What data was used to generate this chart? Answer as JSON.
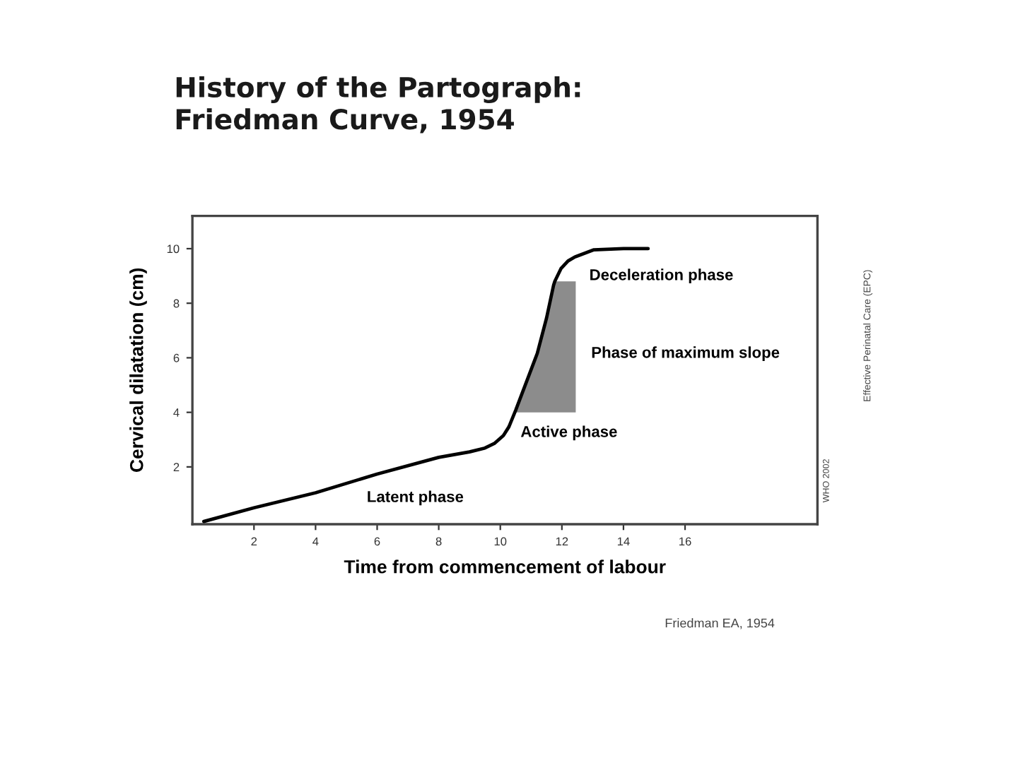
{
  "chart_data": {
    "type": "line",
    "title": "History of the Partograph:\nFriedman Curve, 1954",
    "xlabel": "Time from commencement of labour",
    "ylabel": "Cervical dilatation (cm)",
    "xlim": [
      0,
      20.3
    ],
    "ylim": [
      -0.1,
      11.2
    ],
    "xticks": [
      2,
      4,
      6,
      8,
      10,
      12,
      14,
      16
    ],
    "yticks": [
      2,
      4,
      6,
      8,
      10
    ],
    "series": [
      {
        "color": "#000000",
        "x": [
          0.37,
          2,
          4,
          6,
          8,
          9.0,
          9.5,
          9.82,
          10.1,
          10.28,
          10.5,
          11.2,
          11.5,
          11.73,
          11.77,
          11.97,
          12.2,
          12.43,
          12.45,
          13.04,
          14.0,
          14.8
        ],
        "values": [
          0.0,
          0.5,
          1.05,
          1.74,
          2.35,
          2.55,
          2.69,
          2.87,
          3.15,
          3.47,
          4.08,
          6.16,
          7.45,
          8.66,
          8.8,
          9.27,
          9.55,
          9.7,
          9.71,
          9.96,
          10.0,
          10.0
        ],
        "lower": [
          null,
          null,
          null,
          null,
          null,
          null,
          null,
          null,
          null,
          null,
          4.0,
          4.0,
          4.0,
          4.0,
          4.0,
          4.0,
          4.0,
          4.0,
          4.0,
          null,
          null,
          null
        ],
        "upper": [
          null,
          null,
          null,
          null,
          null,
          null,
          null,
          null,
          null,
          null,
          4.08,
          6.16,
          7.45,
          8.66,
          8.8,
          8.8,
          8.8,
          8.8,
          8.8,
          null,
          null,
          null
        ]
      }
    ],
    "annotations": [
      "Latent phase",
      "Active phase",
      "Phase of maximum slope",
      "Deceleration phase",
      "Friedman EA, 1954",
      "WHO 2002",
      "Effective Perinatal Care (EPC)"
    ],
    "grid": false,
    "legend": false,
    "marker": "none",
    "line_style": "solid"
  }
}
